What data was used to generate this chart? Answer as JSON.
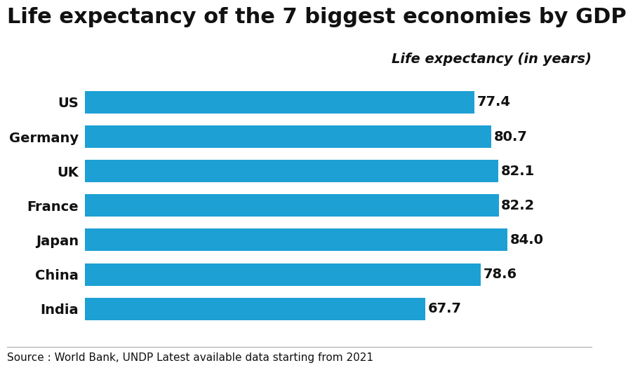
{
  "title": "Life expectancy of the 7 biggest economies by GDP",
  "subtitle": "Life expectancy (in years)",
  "source": "Source : World Bank, UNDP Latest available data starting from 2021",
  "countries": [
    "US",
    "Germany",
    "UK",
    "France",
    "Japan",
    "China",
    "India"
  ],
  "values": [
    77.4,
    80.7,
    82.1,
    82.2,
    84.0,
    78.6,
    67.7
  ],
  "bar_color": "#1da0d4",
  "background_color": "#ffffff",
  "text_color": "#111111",
  "title_fontsize": 22,
  "subtitle_fontsize": 14,
  "label_fontsize": 14,
  "value_fontsize": 14,
  "source_fontsize": 11,
  "xlim": [
    0,
    90
  ]
}
